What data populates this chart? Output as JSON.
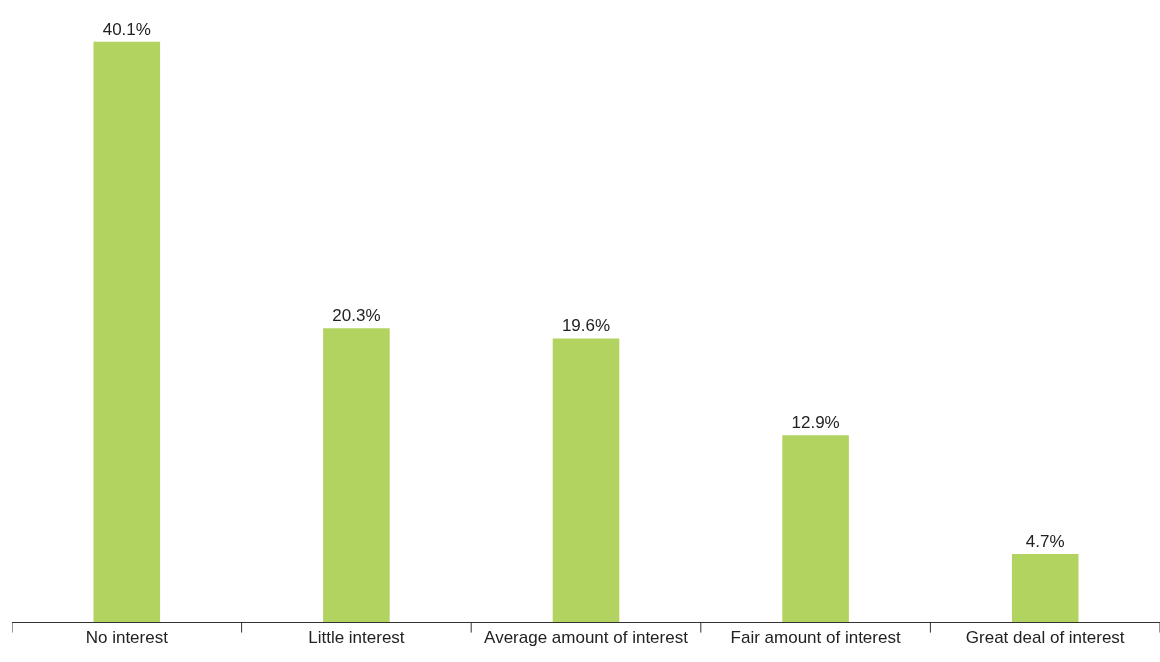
{
  "chart_data": {
    "type": "bar",
    "categories": [
      "No interest",
      "Little interest",
      "Average amount of interest",
      "Fair amount of interest",
      "Great deal of interest"
    ],
    "values": [
      40.1,
      20.3,
      19.6,
      12.9,
      4.7
    ],
    "value_labels": [
      "40.1%",
      "20.3%",
      "19.6%",
      "12.9%",
      "4.7%"
    ],
    "color": "#b2d35f",
    "grid": false,
    "legend": false
  }
}
